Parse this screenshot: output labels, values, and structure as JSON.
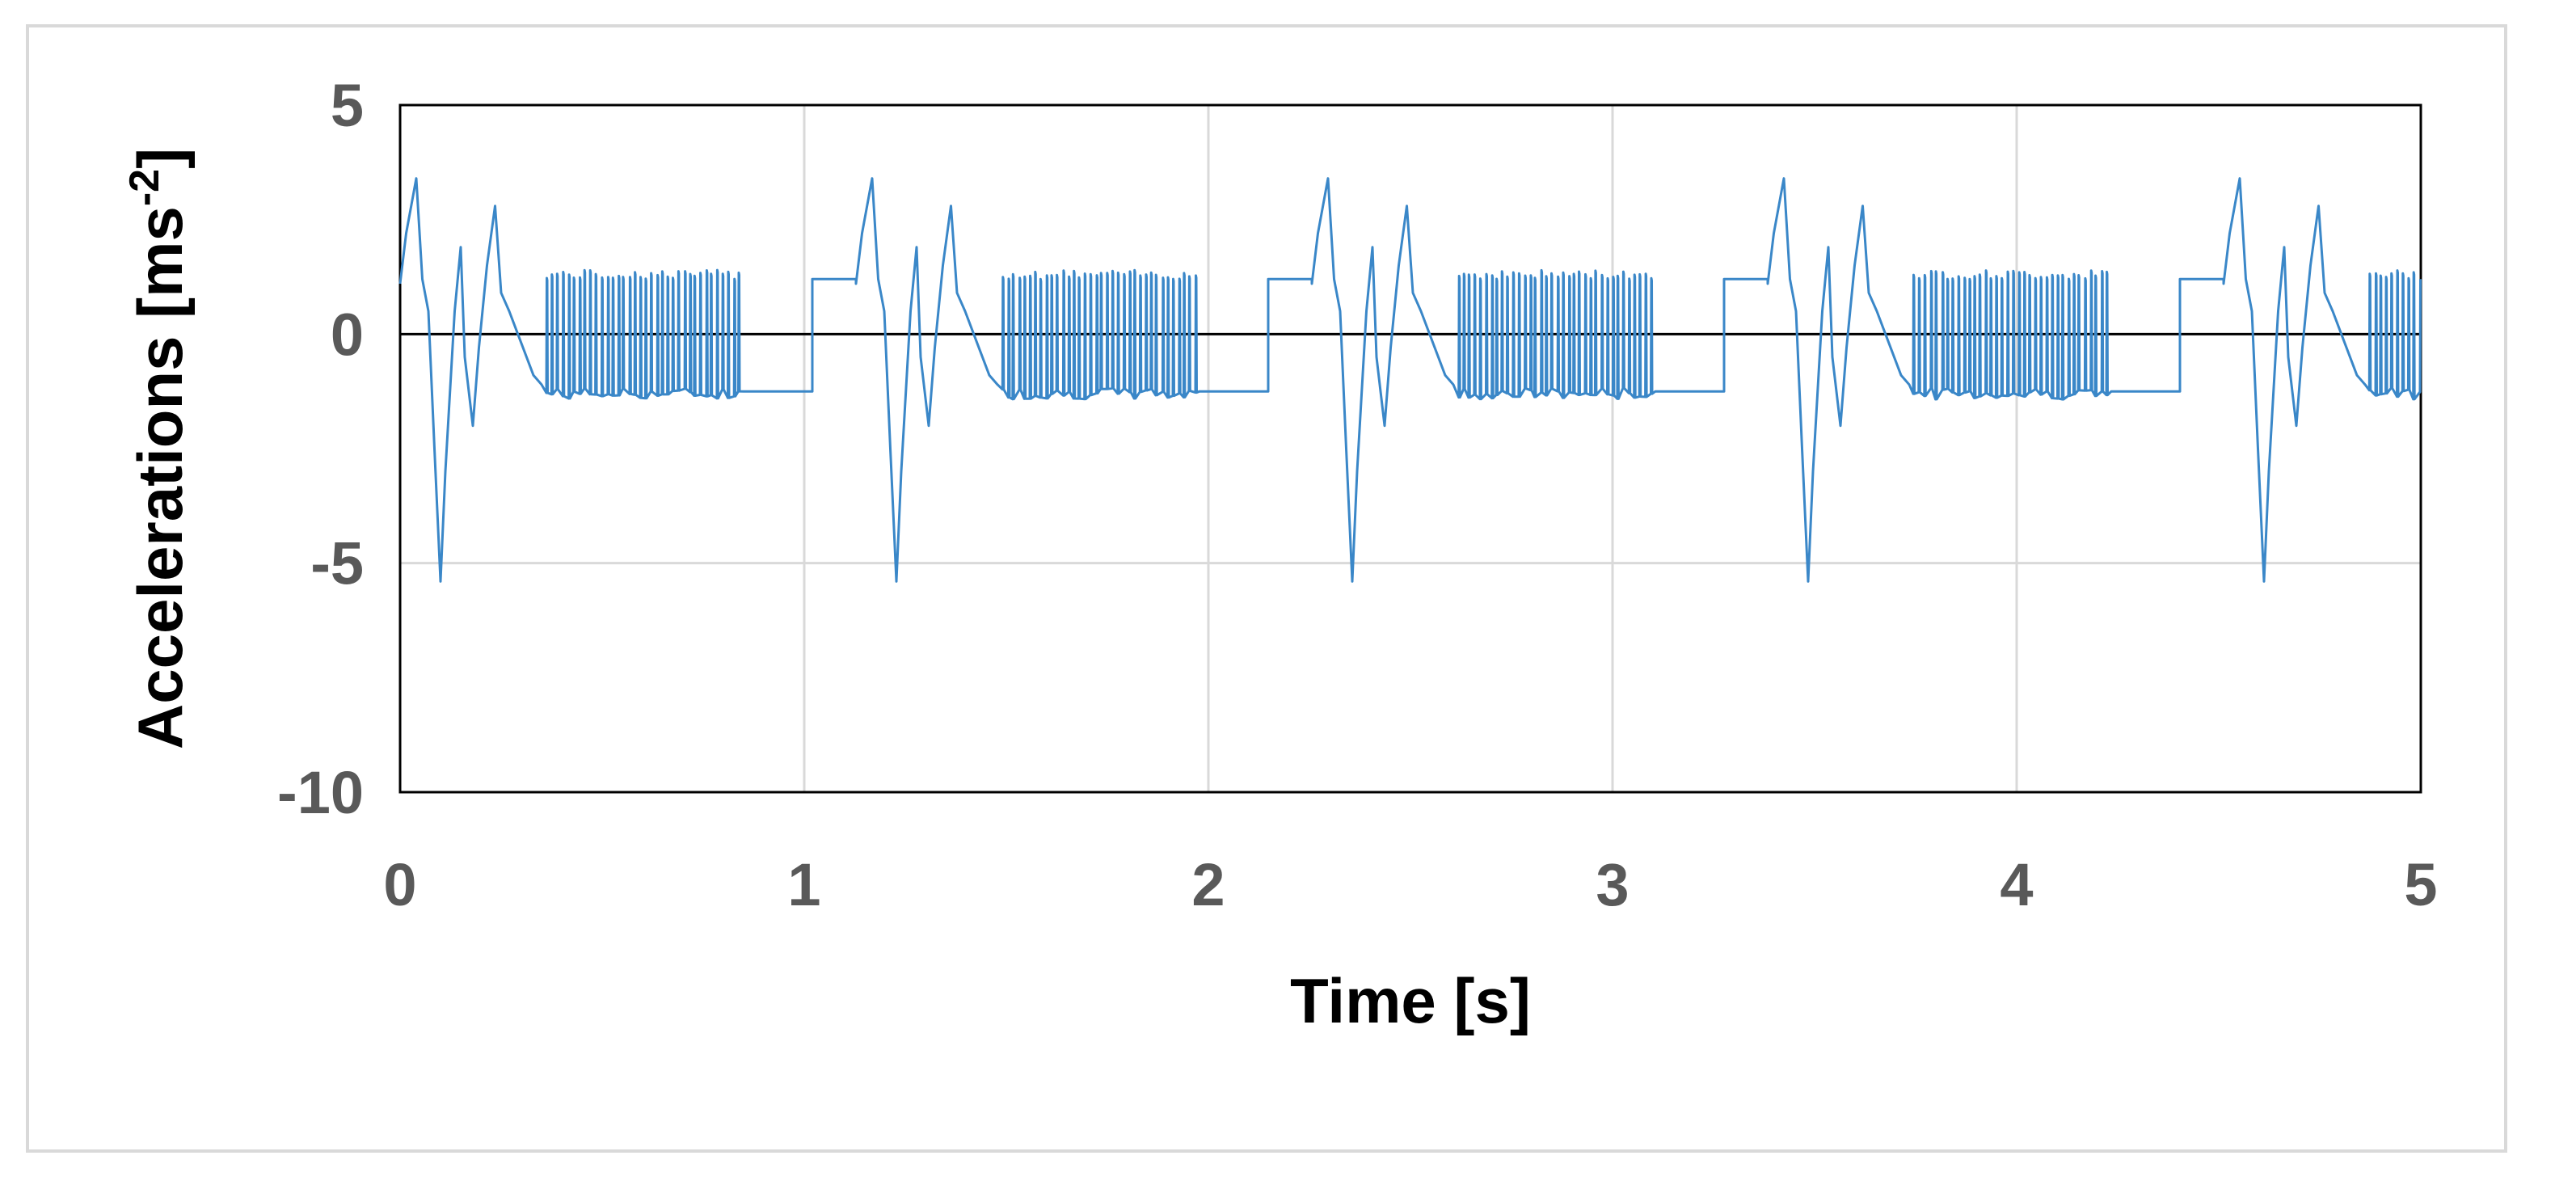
{
  "chart_data": {
    "type": "line",
    "title": "",
    "xlabel": "Time [s]",
    "ylabel_main": "Accelerations [ms",
    "ylabel_sup": "-2",
    "ylabel_end": "]",
    "xlim": [
      0,
      5
    ],
    "ylim": [
      -10,
      5
    ],
    "x_ticks": [
      0,
      1,
      2,
      3,
      4,
      5
    ],
    "y_ticks": [
      5,
      0,
      -5,
      -10
    ],
    "x_tick_labels": [
      "0",
      "1",
      "2",
      "3",
      "4",
      "5"
    ],
    "y_tick_labels": [
      "5",
      "0",
      "-5",
      "-10"
    ],
    "grid": true,
    "legend": "none",
    "series_color": "#3a87c8",
    "zero_line_color": "#000000",
    "series": [
      {
        "period_s": 1.128,
        "cycle_points": [
          [
            0.0,
            1.1
          ],
          [
            0.015,
            2.2
          ],
          [
            0.04,
            3.4
          ],
          [
            0.055,
            1.2
          ],
          [
            0.07,
            0.5
          ],
          [
            0.085,
            -2.5
          ],
          [
            0.1,
            -5.4
          ],
          [
            0.112,
            -3.0
          ],
          [
            0.135,
            0.5
          ],
          [
            0.15,
            1.9
          ],
          [
            0.16,
            -0.5
          ],
          [
            0.18,
            -2.0
          ],
          [
            0.195,
            -0.3
          ],
          [
            0.215,
            1.5
          ],
          [
            0.235,
            2.8
          ],
          [
            0.25,
            0.9
          ],
          [
            0.27,
            0.5
          ],
          [
            0.3,
            -0.2
          ],
          [
            0.33,
            -0.9
          ],
          [
            0.35,
            -1.1
          ]
        ],
        "buzz_segments": [
          {
            "t0": 0.36,
            "t1": 0.85,
            "high": 1.3,
            "low": -1.3,
            "spikes": 36
          },
          {
            "t0": 0.85,
            "t1": 1.02,
            "flat": -1.25
          }
        ],
        "plateau_before_next_cycle": {
          "t0": 1.02,
          "t1": 1.128,
          "value": 1.2
        }
      }
    ]
  }
}
